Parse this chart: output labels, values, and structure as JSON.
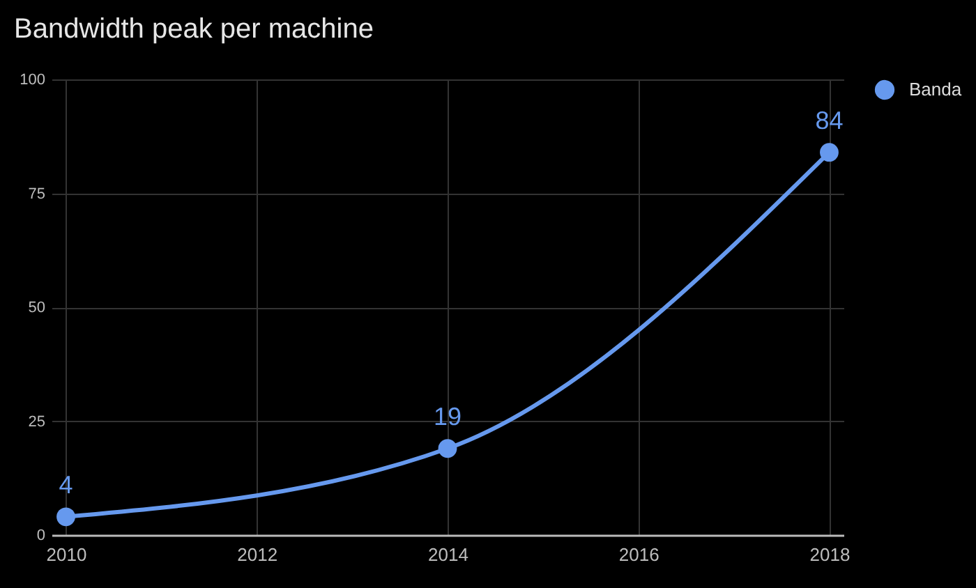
{
  "chart_data": {
    "type": "line",
    "title": "Bandwidth peak per machine",
    "x": [
      2010,
      2014,
      2018
    ],
    "series": [
      {
        "name": "Banda",
        "color": "#6699ee",
        "values": [
          4,
          19,
          84
        ]
      }
    ],
    "xlim": [
      2009.85,
      2018.15
    ],
    "xticks": [
      2010,
      2012,
      2014,
      2016,
      2018
    ],
    "ylim": [
      0,
      100
    ],
    "yticks": [
      0,
      25,
      50,
      75,
      100
    ],
    "grid": true,
    "legend": "top right",
    "marker": "circle",
    "data_labels": true
  }
}
